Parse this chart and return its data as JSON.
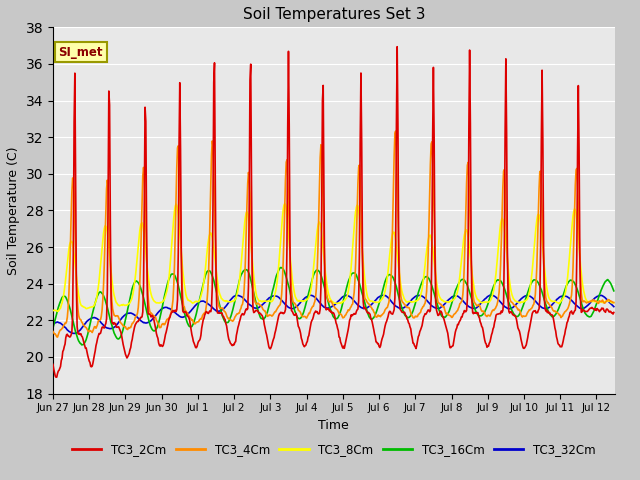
{
  "title": "Soil Temperatures Set 3",
  "xlabel": "Time",
  "ylabel": "Soil Temperature (C)",
  "ylim": [
    18,
    38
  ],
  "yticks": [
    18,
    20,
    22,
    24,
    26,
    28,
    30,
    32,
    34,
    36,
    38
  ],
  "colors": {
    "TC3_2Cm": "#dd0000",
    "TC3_4Cm": "#ff8c00",
    "TC3_8Cm": "#ffff00",
    "TC3_16Cm": "#00bb00",
    "TC3_32Cm": "#0000cc"
  },
  "legend_label": "SI_met",
  "fig_bg": "#c8c8c8",
  "ax_bg": "#e8e8e8",
  "line_width": 1.2,
  "xtick_labels": [
    "Jun 27",
    "Jun 28",
    "Jun 29",
    "Jun 30",
    "Jul 1",
    "Jul 2",
    "Jul 3",
    "Jul 4",
    "Jul 5",
    "Jul 6",
    "Jul 7",
    "Jul 8",
    "Jul 9",
    "Jul 10",
    "Jul 11",
    "Jul 12"
  ]
}
